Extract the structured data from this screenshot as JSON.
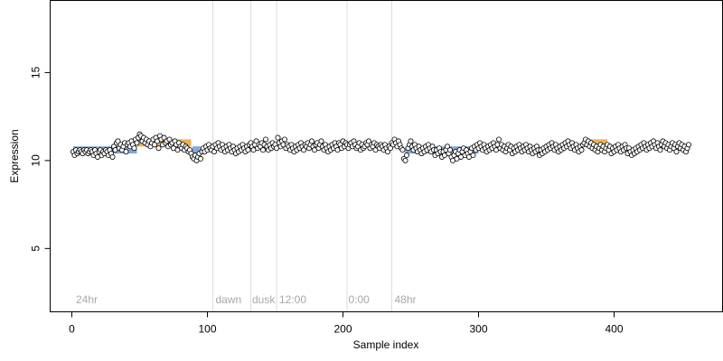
{
  "chart_data": {
    "type": "scatter",
    "title": "",
    "xlabel": "Sample index",
    "ylabel": "Expression",
    "xlim": [
      -16,
      480
    ],
    "ylim": [
      1.4,
      19.1
    ],
    "x_ticks": [
      0,
      100,
      200,
      300,
      400
    ],
    "y_ticks": [
      5,
      10,
      15
    ],
    "grid": false,
    "vlines": [
      104,
      132,
      151,
      203,
      236
    ],
    "annotations": [
      {
        "text": "24hr",
        "x": 3,
        "y": 1.9
      },
      {
        "text": "dawn",
        "x": 106,
        "y": 1.9
      },
      {
        "text": "dusk",
        "x": 133,
        "y": 1.9
      },
      {
        "text": "12:00",
        "x": 153,
        "y": 1.9
      },
      {
        "text": "0:00",
        "x": 204,
        "y": 1.9
      },
      {
        "text": "48hr",
        "x": 238,
        "y": 1.9
      }
    ],
    "segments": [
      {
        "color": "#6b9bd2",
        "x0": 1,
        "x1": 48,
        "y": 10.6
      },
      {
        "color": "#e8a33d",
        "x0": 48,
        "x1": 88,
        "y": 11.0
      },
      {
        "color": "#6b9bd2",
        "x0": 89,
        "x1": 95,
        "y": 10.6
      },
      {
        "color": "#6b9bd2",
        "x0": 246,
        "x1": 300,
        "y": 10.6
      },
      {
        "color": "#e8a33d",
        "x0": 380,
        "x1": 395,
        "y": 11.0
      }
    ],
    "series": [
      {
        "marker": "open-circle",
        "color": "#000000",
        "fill": "#ffffff",
        "x_start": 1,
        "x_step": 1,
        "values": [
          10.5,
          10.3,
          10.6,
          10.4,
          10.5,
          10.6,
          10.5,
          10.4,
          10.6,
          10.5,
          10.6,
          10.4,
          10.5,
          10.6,
          10.5,
          10.3,
          10.6,
          10.4,
          10.2,
          10.5,
          10.6,
          10.3,
          10.5,
          10.4,
          10.6,
          10.5,
          10.3,
          10.6,
          10.4,
          10.2,
          10.8,
          10.6,
          11.0,
          11.1,
          10.7,
          10.9,
          10.6,
          10.8,
          11.0,
          10.5,
          10.9,
          11.0,
          10.8,
          11.1,
          10.9,
          10.7,
          11.2,
          11.0,
          11.3,
          11.5,
          11.4,
          11.1,
          11.3,
          11.0,
          11.2,
          10.9,
          11.1,
          10.8,
          11.0,
          11.2,
          10.9,
          11.3,
          11.1,
          10.7,
          11.4,
          11.2,
          10.9,
          11.3,
          11.0,
          11.1,
          10.8,
          11.2,
          10.9,
          11.0,
          10.7,
          11.1,
          10.9,
          10.6,
          11.0,
          10.8,
          10.7,
          10.9,
          10.6,
          10.8,
          10.7,
          10.5,
          10.6,
          10.4,
          10.2,
          10.1,
          10.3,
          10.0,
          10.2,
          10.4,
          10.1,
          10.5,
          10.7,
          10.5,
          10.8,
          10.6,
          10.9,
          10.7,
          10.6,
          10.8,
          10.5,
          10.9,
          10.7,
          11.0,
          10.8,
          10.6,
          10.9,
          10.7,
          10.5,
          10.8,
          10.6,
          10.9,
          10.7,
          10.5,
          10.8,
          10.6,
          10.4,
          10.7,
          10.5,
          10.8,
          10.6,
          10.9,
          10.7,
          10.5,
          10.8,
          10.6,
          10.9,
          11.0,
          10.8,
          10.6,
          10.9,
          11.1,
          10.7,
          10.9,
          10.8,
          11.0,
          10.6,
          10.9,
          11.2,
          10.8,
          10.6,
          10.9,
          10.7,
          11.0,
          10.8,
          10.9,
          10.7,
          11.3,
          11.0,
          10.8,
          11.1,
          10.9,
          11.2,
          10.7,
          10.9,
          10.8,
          10.6,
          10.9,
          10.7,
          10.5,
          10.8,
          10.6,
          10.9,
          10.7,
          11.0,
          10.8,
          10.6,
          10.9,
          10.8,
          11.0,
          10.7,
          10.9,
          11.1,
          10.8,
          10.6,
          10.9,
          11.0,
          10.7,
          10.9,
          11.1,
          10.8,
          10.6,
          10.9,
          10.7,
          10.5,
          10.8,
          10.6,
          10.9,
          10.7,
          11.0,
          10.8,
          10.6,
          11.0,
          10.9,
          10.7,
          11.1,
          10.8,
          11.0,
          10.9,
          10.7,
          10.9,
          11.0,
          10.8,
          11.1,
          10.9,
          10.7,
          10.8,
          11.0,
          10.6,
          10.9,
          10.7,
          10.8,
          11.0,
          10.9,
          11.1,
          10.7,
          10.9,
          10.8,
          11.0,
          10.6,
          10.9,
          10.8,
          10.7,
          10.9,
          10.8,
          10.6,
          10.9,
          10.7,
          10.5,
          10.8,
          10.7,
          11.0,
          10.9,
          11.2,
          11.0,
          10.8,
          11.1,
          10.9,
          10.7,
          10.6,
          10.1,
          10.0,
          10.3,
          10.7,
          10.9,
          11.1,
          10.8,
          10.6,
          10.9,
          10.7,
          10.5,
          10.8,
          10.6,
          10.4,
          10.7,
          10.5,
          10.8,
          10.6,
          10.9,
          10.7,
          10.5,
          10.8,
          10.6,
          10.3,
          10.6,
          10.4,
          10.7,
          10.5,
          10.2,
          10.5,
          10.3,
          10.6,
          10.8,
          10.4,
          10.6,
          10.2,
          10.0,
          10.3,
          10.5,
          10.1,
          10.4,
          10.6,
          10.2,
          10.5,
          10.7,
          10.3,
          10.6,
          10.4,
          10.2,
          10.5,
          10.7,
          10.3,
          10.8,
          10.6,
          10.9,
          10.7,
          11.0,
          10.8,
          10.6,
          10.9,
          10.7,
          10.5,
          10.8,
          10.6,
          10.9,
          10.7,
          11.0,
          10.8,
          10.6,
          10.9,
          11.2,
          10.7,
          10.9,
          10.6,
          10.8,
          10.5,
          10.7,
          10.9,
          10.6,
          10.8,
          10.4,
          10.7,
          10.5,
          10.8,
          10.6,
          10.9,
          10.7,
          10.5,
          10.8,
          10.6,
          10.9,
          10.7,
          10.5,
          10.8,
          10.6,
          10.4,
          10.7,
          10.5,
          10.8,
          10.6,
          10.3,
          10.6,
          10.4,
          10.7,
          10.5,
          10.8,
          10.6,
          10.9,
          10.7,
          11.0,
          10.8,
          10.6,
          10.9,
          10.7,
          10.5,
          10.8,
          10.6,
          10.9,
          10.7,
          11.0,
          10.8,
          11.1,
          10.9,
          10.7,
          11.0,
          10.8,
          10.6,
          10.9,
          10.7,
          10.5,
          10.8,
          10.6,
          10.9,
          11.0,
          11.2,
          10.9,
          11.1,
          10.8,
          11.0,
          10.7,
          10.9,
          10.6,
          10.8,
          10.5,
          10.7,
          10.9,
          10.6,
          10.8,
          10.5,
          10.7,
          10.9,
          10.6,
          10.8,
          10.4,
          10.7,
          10.5,
          10.8,
          10.6,
          10.9,
          10.7,
          10.5,
          10.8,
          10.6,
          10.9,
          10.7,
          10.4,
          10.7,
          10.5,
          10.3,
          10.6,
          10.4,
          10.7,
          10.5,
          10.8,
          10.6,
          10.9,
          10.7,
          11.0,
          10.8,
          10.6,
          10.9,
          10.7,
          11.0,
          10.8,
          11.1,
          10.9,
          10.7,
          11.0,
          10.8,
          10.6,
          10.9,
          11.1,
          10.8,
          11.0,
          10.7,
          10.9,
          10.6,
          10.8,
          11.0,
          10.7,
          10.9,
          10.5,
          10.8,
          11.0,
          10.7,
          10.9,
          10.6,
          10.8,
          10.5,
          10.7,
          10.9
        ]
      }
    ]
  }
}
